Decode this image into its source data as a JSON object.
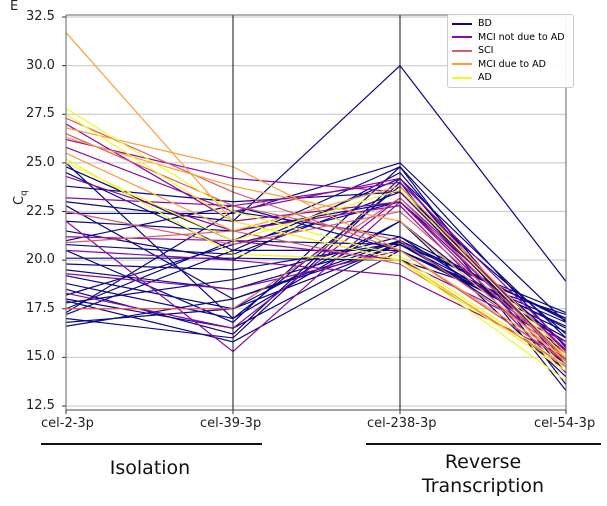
{
  "panel_letter": "E",
  "chart_data": {
    "type": "parallel-coordinates",
    "categories": [
      "cel-2-3p",
      "cel-39-3p",
      "cel-238-3p",
      "cel-54-3p"
    ],
    "ylabel": "C",
    "ylabel_sub": "q",
    "ylim": [
      12.5,
      32.5
    ],
    "yticks": [
      "12.5",
      "15.0",
      "17.5",
      "20.0",
      "22.5",
      "25.0",
      "27.5",
      "30.0",
      "32.5"
    ],
    "grid": true,
    "legend_position": "top-right",
    "groups": [
      {
        "label": "Isolation",
        "axes": [
          "cel-2-3p",
          "cel-39-3p"
        ]
      },
      {
        "label": "Reverse\nTranscription",
        "label_lines": [
          "Reverse",
          "Transcription"
        ],
        "axes": [
          "cel-238-3p",
          "cel-54-3p"
        ]
      }
    ],
    "series": [
      {
        "name": "BD",
        "color": "#0d0887",
        "lines": [
          [
            24.8,
            21.0,
            24.8,
            15.5
          ],
          [
            24.5,
            20.5,
            24.2,
            16.0
          ],
          [
            23.0,
            22.0,
            30.0,
            18.9
          ],
          [
            22.4,
            22.4,
            25.0,
            16.8
          ],
          [
            22.0,
            21.5,
            23.0,
            15.0
          ],
          [
            21.5,
            20.0,
            24.5,
            14.5
          ],
          [
            20.8,
            20.3,
            23.5,
            16.2
          ],
          [
            20.1,
            20.1,
            20.0,
            17.2
          ],
          [
            19.5,
            18.5,
            21.0,
            17.0
          ],
          [
            19.2,
            17.5,
            20.8,
            16.5
          ],
          [
            18.8,
            17.0,
            23.8,
            14.8
          ],
          [
            18.5,
            16.2,
            24.2,
            14.2
          ],
          [
            18.0,
            16.5,
            21.0,
            17.0
          ],
          [
            17.9,
            15.8,
            20.5,
            16.8
          ],
          [
            17.8,
            19.0,
            21.2,
            15.8
          ],
          [
            17.5,
            21.0,
            20.8,
            17.3
          ],
          [
            17.2,
            20.5,
            20.5,
            16.6
          ],
          [
            17.0,
            16.0,
            24.0,
            13.3
          ],
          [
            16.8,
            17.5,
            22.0,
            15.2
          ],
          [
            16.6,
            18.0,
            20.8,
            16.0
          ],
          [
            23.8,
            23.0,
            23.5,
            14.9
          ],
          [
            22.8,
            18.0,
            21.0,
            15.4
          ],
          [
            21.0,
            22.8,
            20.5,
            16.3
          ],
          [
            20.5,
            16.8,
            24.8,
            13.6
          ],
          [
            19.8,
            19.5,
            20.9,
            17.0
          ],
          [
            18.2,
            20.8,
            23.0,
            15.6
          ],
          [
            25.0,
            17.0,
            22.0,
            14.0
          ],
          [
            17.3,
            22.5,
            21.2,
            16.9
          ]
        ]
      },
      {
        "name": "MCI not due to AD",
        "color": "#8b0aa5",
        "lines": [
          [
            27.0,
            22.0,
            23.0,
            15.0
          ],
          [
            26.2,
            24.2,
            23.5,
            15.3
          ],
          [
            25.8,
            22.5,
            24.2,
            14.6
          ],
          [
            22.0,
            15.3,
            23.0,
            14.5
          ],
          [
            21.2,
            21.0,
            20.0,
            15.8
          ],
          [
            20.5,
            20.0,
            19.2,
            15.0
          ],
          [
            19.3,
            18.5,
            20.5,
            14.8
          ],
          [
            18.3,
            16.5,
            23.2,
            15.4
          ],
          [
            24.3,
            21.5,
            22.8,
            14.2
          ],
          [
            23.2,
            22.8,
            24.0,
            15.6
          ]
        ]
      },
      {
        "name": "SCI",
        "color": "#db5c68",
        "lines": [
          [
            27.3,
            23.5,
            20.5,
            14.8
          ],
          [
            26.5,
            22.8,
            21.0,
            15.2
          ],
          [
            22.5,
            20.8,
            22.5,
            15.0
          ],
          [
            20.9,
            21.5,
            19.8,
            14.6
          ],
          [
            17.5,
            17.5,
            23.2,
            14.9
          ]
        ]
      },
      {
        "name": "MCI due to AD",
        "color": "#fb9f3a",
        "lines": [
          [
            31.7,
            22.0,
            20.0,
            14.5
          ],
          [
            26.8,
            24.8,
            20.5,
            15.0
          ],
          [
            26.3,
            23.8,
            22.0,
            14.8
          ],
          [
            25.5,
            21.5,
            23.8,
            15.2
          ]
        ]
      },
      {
        "name": "AD",
        "color": "#f0f921",
        "lines": [
          [
            27.8,
            22.5,
            20.2,
            14.6
          ],
          [
            27.5,
            22.0,
            20.0,
            14.3
          ],
          [
            25.2,
            20.3,
            20.0,
            13.8
          ],
          [
            25.0,
            21.0,
            23.6,
            15.0
          ]
        ]
      }
    ]
  }
}
